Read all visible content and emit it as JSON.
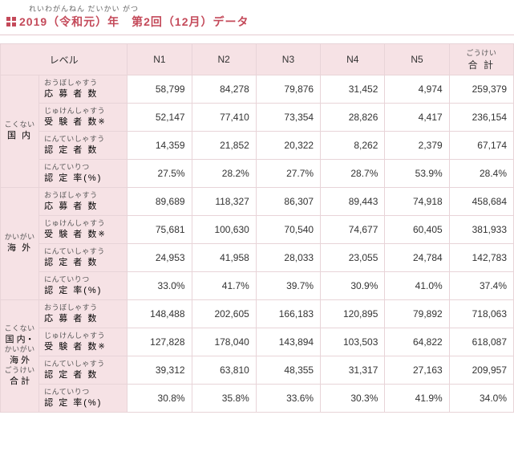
{
  "header": {
    "ruby": "れいわがんねん   だいかい     がつ",
    "title": "2019（令和元）年　第2回（12月）データ"
  },
  "columns": {
    "level": "レベル",
    "n1": "N1",
    "n2": "N2",
    "n3": "N3",
    "n4": "N4",
    "n5": "N5",
    "total_furi": "ごうけい",
    "total": "合 計"
  },
  "categories": {
    "domestic": {
      "furi": "こくない",
      "label": "国 内"
    },
    "overseas": {
      "furi": "かいがい",
      "label": "海 外"
    },
    "total": {
      "furi1": "こくない",
      "label1": "国 内・",
      "furi2": "かいがい",
      "label2": "海 外",
      "furi3": "ごうけい",
      "label3": "合 計"
    }
  },
  "metrics": {
    "applicants": {
      "furi": "おうぼしゃすう",
      "label": "応 募 者 数"
    },
    "examinees": {
      "furi": "じゅけんしゃすう",
      "label": "受 験 者 数",
      "note": "※"
    },
    "certified": {
      "furi": "にんていしゃすう",
      "label": "認 定 者 数"
    },
    "rate": {
      "furi": "にんていりつ",
      "label": "認 定 率(%)"
    }
  },
  "data": {
    "domestic": {
      "applicants": [
        "58,799",
        "84,278",
        "79,876",
        "31,452",
        "4,974",
        "259,379"
      ],
      "examinees": [
        "52,147",
        "77,410",
        "73,354",
        "28,826",
        "4,417",
        "236,154"
      ],
      "certified": [
        "14,359",
        "21,852",
        "20,322",
        "8,262",
        "2,379",
        "67,174"
      ],
      "rate": [
        "27.5%",
        "28.2%",
        "27.7%",
        "28.7%",
        "53.9%",
        "28.4%"
      ]
    },
    "overseas": {
      "applicants": [
        "89,689",
        "118,327",
        "86,307",
        "89,443",
        "74,918",
        "458,684"
      ],
      "examinees": [
        "75,681",
        "100,630",
        "70,540",
        "74,677",
        "60,405",
        "381,933"
      ],
      "certified": [
        "24,953",
        "41,958",
        "28,033",
        "23,055",
        "24,784",
        "142,783"
      ],
      "rate": [
        "33.0%",
        "41.7%",
        "39.7%",
        "30.9%",
        "41.0%",
        "37.4%"
      ]
    },
    "total": {
      "applicants": [
        "148,488",
        "202,605",
        "166,183",
        "120,895",
        "79,892",
        "718,063"
      ],
      "examinees": [
        "127,828",
        "178,040",
        "143,894",
        "103,503",
        "64,822",
        "618,087"
      ],
      "certified": [
        "39,312",
        "63,810",
        "48,355",
        "31,317",
        "27,163",
        "209,957"
      ],
      "rate": [
        "30.8%",
        "35.8%",
        "33.6%",
        "30.3%",
        "41.9%",
        "34.0%"
      ]
    }
  },
  "style": {
    "header_bg": "#f6e2e5",
    "border_color": "#e8d4d8",
    "accent": "#c44a5a"
  }
}
